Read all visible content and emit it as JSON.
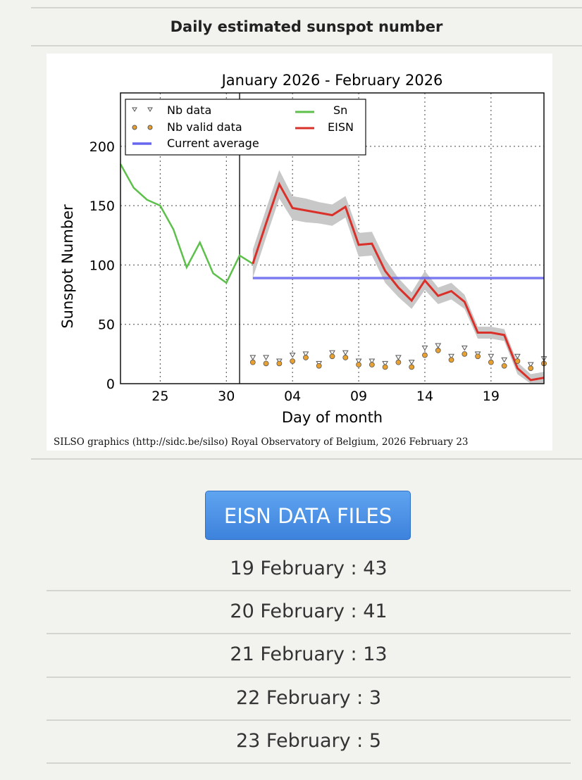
{
  "header": {
    "title": "Daily estimated sunspot number"
  },
  "credit": "SILSO graphics (http://sidc.be/silso) Royal Observatory of Belgium, 2026 February 23",
  "button_label": "EISN DATA FILES",
  "list": [
    "19 February : 43",
    "20 February : 41",
    "21 February : 13",
    "22 February : 3",
    "23 February : 5"
  ],
  "chart_data": {
    "type": "line",
    "title": "January 2026 - February 2026",
    "xlabel": "Day of month",
    "ylabel": "Sunspot Number",
    "xlim": [
      22,
      54
    ],
    "ylim": [
      0,
      245
    ],
    "xticks": [
      {
        "x": 25,
        "label": "25"
      },
      {
        "x": 30,
        "label": "30"
      },
      {
        "x": 35,
        "label": "04"
      },
      {
        "x": 40,
        "label": "09"
      },
      {
        "x": 45,
        "label": "14"
      },
      {
        "x": 50,
        "label": "19"
      }
    ],
    "yticks": [
      0,
      50,
      100,
      150,
      200
    ],
    "month_boundary": 31,
    "legend": {
      "placement": "top-left",
      "entries": [
        "Nb data",
        "Nb valid data",
        "Current average",
        "Sn",
        "EISN"
      ]
    },
    "colors": {
      "sn": "#5cc04a",
      "eisn": "#d9302a",
      "avg": "#6666ee",
      "band": "#c8c8c8",
      "valid": "#e8a030"
    },
    "sn": {
      "x": [
        22,
        23,
        24,
        25,
        26,
        27,
        28,
        29,
        30,
        31,
        32
      ],
      "y": [
        185,
        165,
        155,
        150,
        130,
        98,
        119,
        93,
        85,
        108,
        101
      ]
    },
    "eisn": {
      "x": [
        32,
        33,
        34,
        35,
        36,
        37,
        38,
        39,
        40,
        41,
        42,
        43,
        44,
        45,
        46,
        47,
        48,
        49,
        50,
        51,
        52,
        53,
        54
      ],
      "y": [
        101,
        135,
        168,
        148,
        146,
        144,
        142,
        149,
        117,
        118,
        95,
        81,
        70,
        87,
        74,
        78,
        69,
        43,
        43,
        41,
        13,
        3,
        5
      ],
      "err": [
        12,
        12,
        12,
        10,
        10,
        9,
        9,
        9,
        10,
        10,
        10,
        8,
        7,
        8,
        7,
        7,
        6,
        5,
        5,
        5,
        5,
        5,
        5
      ]
    },
    "current_average": {
      "value": 89,
      "x_from": 32
    },
    "nb_data": [
      22,
      22,
      19,
      24,
      25,
      17,
      26,
      26,
      19,
      19,
      17,
      22,
      18,
      30,
      32,
      23,
      30,
      25,
      23,
      20,
      23,
      16,
      21
    ],
    "nb_valid_data": [
      18,
      17,
      17,
      19,
      22,
      15,
      23,
      22,
      16,
      16,
      14,
      18,
      14,
      24,
      28,
      20,
      25,
      23,
      18,
      15,
      19,
      13,
      17
    ]
  }
}
